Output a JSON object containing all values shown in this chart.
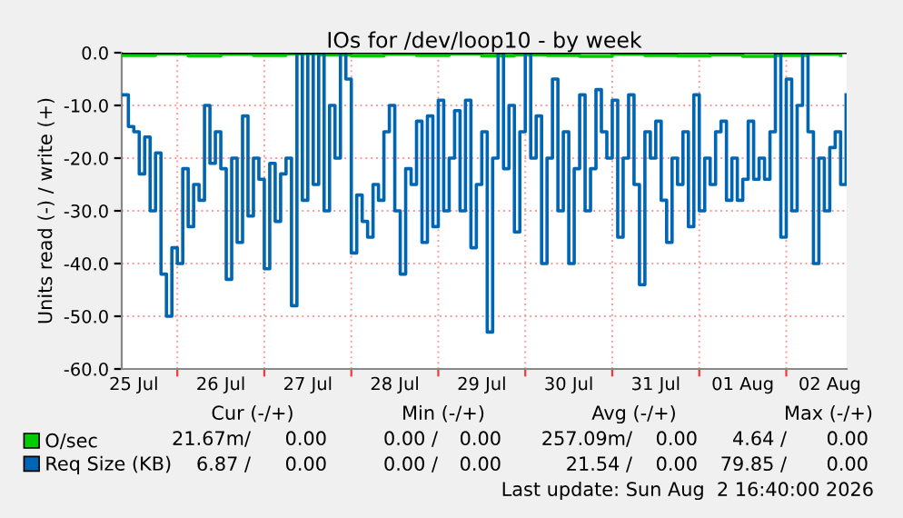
{
  "chart_data": {
    "type": "step",
    "title": "IOs for /dev/loop10 - by week",
    "ylabel": "Units read (-) / write (+)",
    "xlim": [
      "2026-07-25T08:40",
      "2026-08-02T16:40"
    ],
    "xticks": [
      {
        "value": "2026-07-25T12:00",
        "label": "25 Jul"
      },
      {
        "value": "2026-07-26T00:00",
        "label": null
      },
      {
        "value": "2026-07-26T12:00",
        "label": "26 Jul"
      },
      {
        "value": "2026-07-27T00:00",
        "label": null
      },
      {
        "value": "2026-07-27T12:00",
        "label": "27 Jul"
      },
      {
        "value": "2026-07-28T00:00",
        "label": null
      },
      {
        "value": "2026-07-28T12:00",
        "label": "28 Jul"
      },
      {
        "value": "2026-07-29T00:00",
        "label": null
      },
      {
        "value": "2026-07-29T12:00",
        "label": "29 Jul"
      },
      {
        "value": "2026-07-30T00:00",
        "label": null
      },
      {
        "value": "2026-07-30T12:00",
        "label": "30 Jul"
      },
      {
        "value": "2026-07-31T00:00",
        "label": null
      },
      {
        "value": "2026-07-31T12:00",
        "label": "31 Jul"
      },
      {
        "value": "2026-08-01T00:00",
        "label": null
      },
      {
        "value": "2026-08-01T12:00",
        "label": "01 Aug"
      },
      {
        "value": "2026-08-02T00:00",
        "label": null
      },
      {
        "value": "2026-08-02T12:00",
        "label": "02 Aug"
      }
    ],
    "ylim": [
      -60,
      0
    ],
    "yticks": [
      {
        "value": -60,
        "label": "-60.0"
      },
      {
        "value": -50,
        "label": "-50.0"
      },
      {
        "value": -40,
        "label": "-40.0"
      },
      {
        "value": -30,
        "label": "-30.0"
      },
      {
        "value": -20,
        "label": "-20.0"
      },
      {
        "value": -10,
        "label": "-10.0"
      },
      {
        "value": 0,
        "label": "0.0"
      }
    ],
    "grid": true,
    "legend": "bottom left",
    "ref_lines": [
      {
        "axis": "y",
        "value": 0,
        "color": "#000000"
      }
    ],
    "series": [
      {
        "name": "O/sec",
        "color": "#00cc00",
        "x": [
          "2026-07-25T09:00",
          "2026-07-25T18:00",
          "2026-07-26T03:00",
          "2026-07-26T12:00",
          "2026-07-26T21:00",
          "2026-07-27T06:00",
          "2026-07-27T15:00",
          "2026-07-28T00:00",
          "2026-07-28T09:00",
          "2026-07-28T18:00",
          "2026-07-29T03:00",
          "2026-07-29T12:00",
          "2026-07-29T21:00",
          "2026-07-30T06:00",
          "2026-07-30T15:00",
          "2026-07-31T00:00",
          "2026-07-31T09:00",
          "2026-07-31T18:00",
          "2026-08-01T03:00",
          "2026-08-01T12:00",
          "2026-08-01T21:00",
          "2026-08-02T06:00",
          "2026-08-02T15:00"
        ],
        "values": [
          -0.5,
          -0.2,
          -0.6,
          -0.3,
          -0.5,
          -0.2,
          -0.4,
          -0.6,
          -0.3,
          -0.5,
          -0.2,
          -0.6,
          -0.4,
          -0.5,
          -0.7,
          -0.3,
          -0.5,
          -0.6,
          -0.4,
          -0.7,
          -0.5,
          -0.3,
          -0.5
        ]
      },
      {
        "name": "Req Size (KB)",
        "color": "#0066b3",
        "x": [
          "2026-07-25T09:00",
          "2026-07-25T10:30",
          "2026-07-25T12:00",
          "2026-07-25T13:30",
          "2026-07-25T15:00",
          "2026-07-25T16:30",
          "2026-07-25T18:00",
          "2026-07-25T19:30",
          "2026-07-25T21:00",
          "2026-07-25T22:30",
          "2026-07-26T00:00",
          "2026-07-26T01:30",
          "2026-07-26T03:00",
          "2026-07-26T04:30",
          "2026-07-26T06:00",
          "2026-07-26T07:30",
          "2026-07-26T09:00",
          "2026-07-26T10:30",
          "2026-07-26T12:00",
          "2026-07-26T13:30",
          "2026-07-26T15:00",
          "2026-07-26T16:30",
          "2026-07-26T18:00",
          "2026-07-26T19:30",
          "2026-07-26T21:00",
          "2026-07-26T22:30",
          "2026-07-27T00:00",
          "2026-07-27T01:30",
          "2026-07-27T03:00",
          "2026-07-27T04:30",
          "2026-07-27T06:00",
          "2026-07-27T07:30",
          "2026-07-27T09:00",
          "2026-07-27T10:30",
          "2026-07-27T12:00",
          "2026-07-27T13:30",
          "2026-07-27T15:00",
          "2026-07-27T16:30",
          "2026-07-27T18:00",
          "2026-07-27T19:30",
          "2026-07-27T21:00",
          "2026-07-27T22:30",
          "2026-07-28T00:00",
          "2026-07-28T01:30",
          "2026-07-28T03:00",
          "2026-07-28T04:30",
          "2026-07-28T06:00",
          "2026-07-28T07:30",
          "2026-07-28T09:00",
          "2026-07-28T10:30",
          "2026-07-28T12:00",
          "2026-07-28T13:30",
          "2026-07-28T15:00",
          "2026-07-28T16:30",
          "2026-07-28T18:00",
          "2026-07-28T19:30",
          "2026-07-28T21:00",
          "2026-07-28T22:30",
          "2026-07-29T00:00",
          "2026-07-29T01:30",
          "2026-07-29T03:00",
          "2026-07-29T04:30",
          "2026-07-29T06:00",
          "2026-07-29T07:30",
          "2026-07-29T09:00",
          "2026-07-29T10:30",
          "2026-07-29T12:00",
          "2026-07-29T13:30",
          "2026-07-29T15:00",
          "2026-07-29T16:30",
          "2026-07-29T18:00",
          "2026-07-29T19:30",
          "2026-07-29T21:00",
          "2026-07-29T22:30",
          "2026-07-30T00:00",
          "2026-07-30T01:30",
          "2026-07-30T03:00",
          "2026-07-30T04:30",
          "2026-07-30T06:00",
          "2026-07-30T07:30",
          "2026-07-30T09:00",
          "2026-07-30T10:30",
          "2026-07-30T12:00",
          "2026-07-30T13:30",
          "2026-07-30T15:00",
          "2026-07-30T16:30",
          "2026-07-30T18:00",
          "2026-07-30T19:30",
          "2026-07-30T21:00",
          "2026-07-30T22:30",
          "2026-07-31T00:00",
          "2026-07-31T01:30",
          "2026-07-31T03:00",
          "2026-07-31T04:30",
          "2026-07-31T06:00",
          "2026-07-31T07:30",
          "2026-07-31T09:00",
          "2026-07-31T10:30",
          "2026-07-31T12:00",
          "2026-07-31T13:30",
          "2026-07-31T15:00",
          "2026-07-31T16:30",
          "2026-07-31T18:00",
          "2026-07-31T19:30",
          "2026-07-31T21:00",
          "2026-07-31T22:30",
          "2026-08-01T00:00",
          "2026-08-01T01:30",
          "2026-08-01T03:00",
          "2026-08-01T04:30",
          "2026-08-01T06:00",
          "2026-08-01T07:30",
          "2026-08-01T09:00",
          "2026-08-01T10:30",
          "2026-08-01T12:00",
          "2026-08-01T13:30",
          "2026-08-01T15:00",
          "2026-08-01T16:30",
          "2026-08-01T18:00",
          "2026-08-01T19:30",
          "2026-08-01T21:00",
          "2026-08-01T22:30",
          "2026-08-02T00:00",
          "2026-08-02T01:30",
          "2026-08-02T03:00",
          "2026-08-02T04:30",
          "2026-08-02T06:00",
          "2026-08-02T07:30",
          "2026-08-02T09:00",
          "2026-08-02T10:30",
          "2026-08-02T12:00",
          "2026-08-02T13:30",
          "2026-08-02T15:00",
          "2026-08-02T16:30"
        ],
        "values": [
          -8,
          -14,
          -15,
          -23,
          -16,
          -30,
          -19,
          -42,
          -50,
          -37,
          -40,
          -22,
          -33,
          -25,
          -28,
          -10,
          -21,
          -15,
          -22,
          -43,
          -20,
          -36,
          -12,
          -31,
          -20,
          -24,
          -41,
          -21,
          -32,
          -23,
          -20,
          -48,
          0,
          -28,
          0,
          -25,
          0,
          -30,
          -10,
          -20,
          0,
          -5,
          -38,
          -27,
          -32,
          -35,
          -25,
          -28,
          -15,
          -10,
          -30,
          -42,
          -22,
          -25,
          -13,
          -36,
          -12,
          -33,
          -9,
          -30,
          -20,
          -11,
          -30,
          -9,
          -37,
          -25,
          -15,
          -53,
          -20,
          0,
          -22,
          -10,
          -34,
          -15,
          0,
          -20,
          -12,
          -40,
          -20,
          -5,
          -30,
          -15,
          -40,
          -22,
          -8,
          -30,
          -22,
          -7,
          -15,
          -20,
          -9,
          -35,
          -20,
          -8,
          -25,
          -44,
          -15,
          -20,
          -13,
          -28,
          -36,
          -20,
          -25,
          -15,
          -33,
          -8,
          -30,
          -20,
          -25,
          -15,
          -13,
          -28,
          -20,
          -28,
          -24,
          -13,
          -24,
          -20,
          -24,
          -15,
          0,
          -35,
          -5,
          -30,
          -10,
          0,
          -15,
          -40,
          -20,
          -30,
          -18,
          -15,
          -25,
          -8
        ]
      }
    ],
    "annotations": [
      "Cur (-/+)",
      "Min (-/+)",
      "Avg (-/+)",
      "Max (-/+)",
      "21.67m/",
      "0.00",
      "0.00 /",
      "0.00",
      "257.09m/",
      "0.00",
      "4.64 /",
      "0.00",
      "6.87 /",
      "0.00",
      "0.00 /",
      "0.00",
      "21.54 /",
      "0.00",
      "79.85 /",
      "0.00",
      "Last update: Sun Aug  2 16:40:00 2026"
    ]
  }
}
